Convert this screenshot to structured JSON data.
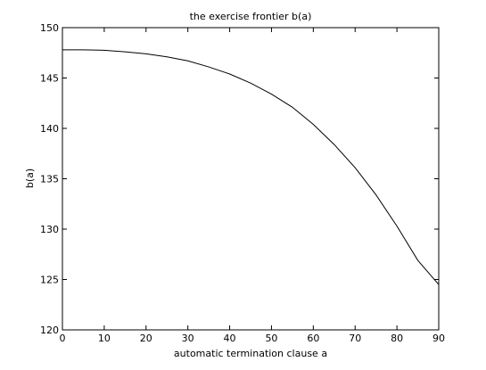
{
  "chart_data": {
    "type": "line",
    "title": "the exercise frontier b(a)",
    "xlabel": "automatic termination clause a",
    "ylabel": "b(a)",
    "xlim": [
      0,
      90
    ],
    "ylim": [
      120,
      150
    ],
    "xticks": [
      0,
      10,
      20,
      30,
      40,
      50,
      60,
      70,
      80,
      90
    ],
    "yticks": [
      120,
      125,
      130,
      135,
      140,
      145,
      150
    ],
    "grid": false,
    "line_color": "#000000",
    "series": [
      {
        "x": [
          0,
          5,
          10,
          15,
          20,
          25,
          30,
          35,
          40,
          45,
          50,
          55,
          60,
          65,
          70,
          75,
          80,
          85,
          90
        ],
        "y": [
          147.8,
          147.8,
          147.75,
          147.6,
          147.4,
          147.1,
          146.7,
          146.1,
          145.4,
          144.5,
          143.4,
          142.1,
          140.4,
          138.4,
          136.1,
          133.4,
          130.3,
          126.9,
          124.5
        ]
      }
    ]
  }
}
